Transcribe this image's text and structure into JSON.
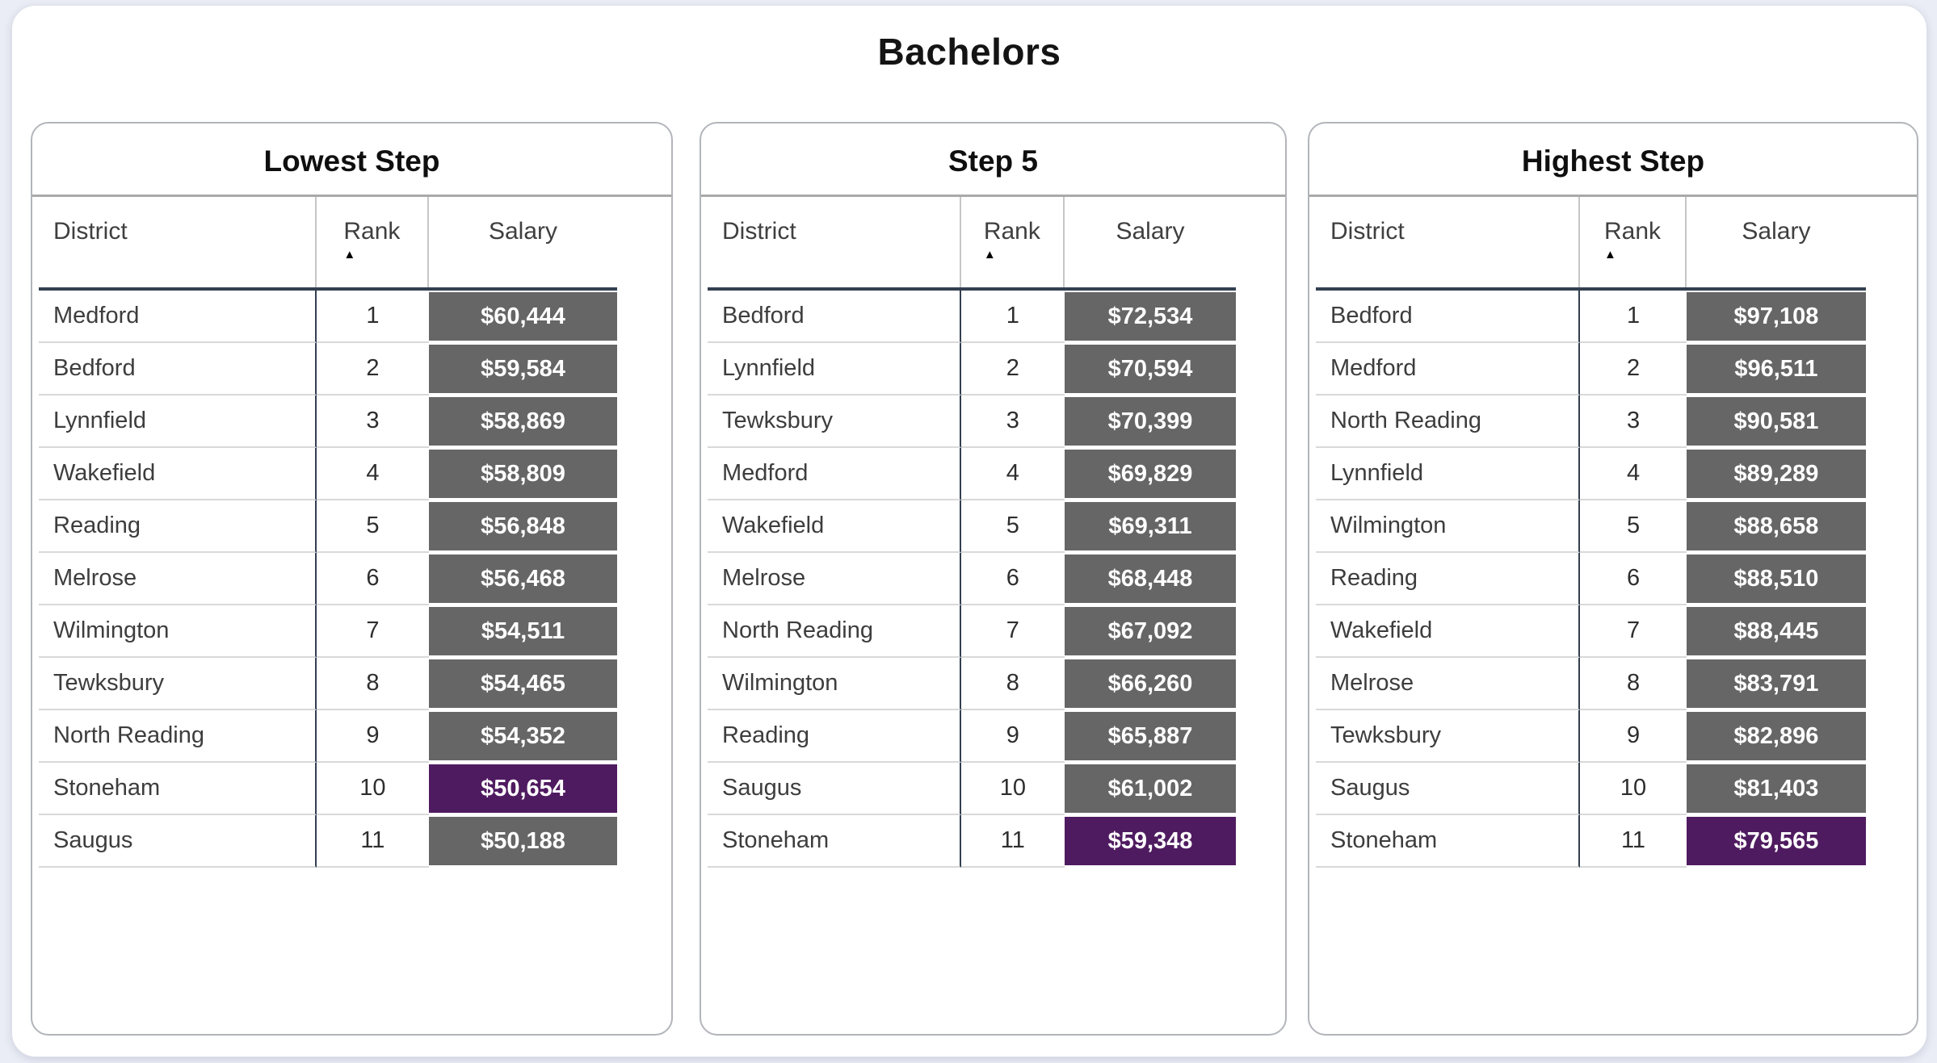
{
  "page": {
    "title": "Bachelors"
  },
  "sort_icon": "▲",
  "colors": {
    "salary_cell": "#666666",
    "highlight_cell": "#4f1b60",
    "header_line": "#333f50",
    "row_divider": "#d9d9d9",
    "page_background": "#eaedf5"
  },
  "chart_data": [
    {
      "type": "table",
      "title": "Lowest Step",
      "columns": [
        "District",
        "Rank",
        "Salary"
      ],
      "sort": {
        "column": "Rank",
        "direction": "ascending"
      },
      "rows": [
        {
          "district": "Medford",
          "rank": 1,
          "salary": "$60,444",
          "highlight": false
        },
        {
          "district": "Bedford",
          "rank": 2,
          "salary": "$59,584",
          "highlight": false
        },
        {
          "district": "Lynnfield",
          "rank": 3,
          "salary": "$58,869",
          "highlight": false
        },
        {
          "district": "Wakefield",
          "rank": 4,
          "salary": "$58,809",
          "highlight": false
        },
        {
          "district": "Reading",
          "rank": 5,
          "salary": "$56,848",
          "highlight": false
        },
        {
          "district": "Melrose",
          "rank": 6,
          "salary": "$56,468",
          "highlight": false
        },
        {
          "district": "Wilmington",
          "rank": 7,
          "salary": "$54,511",
          "highlight": false
        },
        {
          "district": "Tewksbury",
          "rank": 8,
          "salary": "$54,465",
          "highlight": false
        },
        {
          "district": "North Reading",
          "rank": 9,
          "salary": "$54,352",
          "highlight": false
        },
        {
          "district": "Stoneham",
          "rank": 10,
          "salary": "$50,654",
          "highlight": true
        },
        {
          "district": "Saugus",
          "rank": 11,
          "salary": "$50,188",
          "highlight": false
        }
      ]
    },
    {
      "type": "table",
      "title": "Step 5",
      "columns": [
        "District",
        "Rank",
        "Salary"
      ],
      "sort": {
        "column": "Rank",
        "direction": "ascending"
      },
      "rows": [
        {
          "district": "Bedford",
          "rank": 1,
          "salary": "$72,534",
          "highlight": false
        },
        {
          "district": "Lynnfield",
          "rank": 2,
          "salary": "$70,594",
          "highlight": false
        },
        {
          "district": "Tewksbury",
          "rank": 3,
          "salary": "$70,399",
          "highlight": false
        },
        {
          "district": "Medford",
          "rank": 4,
          "salary": "$69,829",
          "highlight": false
        },
        {
          "district": "Wakefield",
          "rank": 5,
          "salary": "$69,311",
          "highlight": false
        },
        {
          "district": "Melrose",
          "rank": 6,
          "salary": "$68,448",
          "highlight": false
        },
        {
          "district": "North Reading",
          "rank": 7,
          "salary": "$67,092",
          "highlight": false
        },
        {
          "district": "Wilmington",
          "rank": 8,
          "salary": "$66,260",
          "highlight": false
        },
        {
          "district": "Reading",
          "rank": 9,
          "salary": "$65,887",
          "highlight": false
        },
        {
          "district": "Saugus",
          "rank": 10,
          "salary": "$61,002",
          "highlight": false
        },
        {
          "district": "Stoneham",
          "rank": 11,
          "salary": "$59,348",
          "highlight": true
        }
      ]
    },
    {
      "type": "table",
      "title": "Highest Step",
      "columns": [
        "District",
        "Rank",
        "Salary"
      ],
      "sort": {
        "column": "Rank",
        "direction": "ascending"
      },
      "rows": [
        {
          "district": "Bedford",
          "rank": 1,
          "salary": "$97,108",
          "highlight": false
        },
        {
          "district": "Medford",
          "rank": 2,
          "salary": "$96,511",
          "highlight": false
        },
        {
          "district": "North Reading",
          "rank": 3,
          "salary": "$90,581",
          "highlight": false
        },
        {
          "district": "Lynnfield",
          "rank": 4,
          "salary": "$89,289",
          "highlight": false
        },
        {
          "district": "Wilmington",
          "rank": 5,
          "salary": "$88,658",
          "highlight": false
        },
        {
          "district": "Reading",
          "rank": 6,
          "salary": "$88,510",
          "highlight": false
        },
        {
          "district": "Wakefield",
          "rank": 7,
          "salary": "$88,445",
          "highlight": false
        },
        {
          "district": "Melrose",
          "rank": 8,
          "salary": "$83,791",
          "highlight": false
        },
        {
          "district": "Tewksbury",
          "rank": 9,
          "salary": "$82,896",
          "highlight": false
        },
        {
          "district": "Saugus",
          "rank": 10,
          "salary": "$81,403",
          "highlight": false
        },
        {
          "district": "Stoneham",
          "rank": 11,
          "salary": "$79,565",
          "highlight": true
        }
      ]
    }
  ]
}
